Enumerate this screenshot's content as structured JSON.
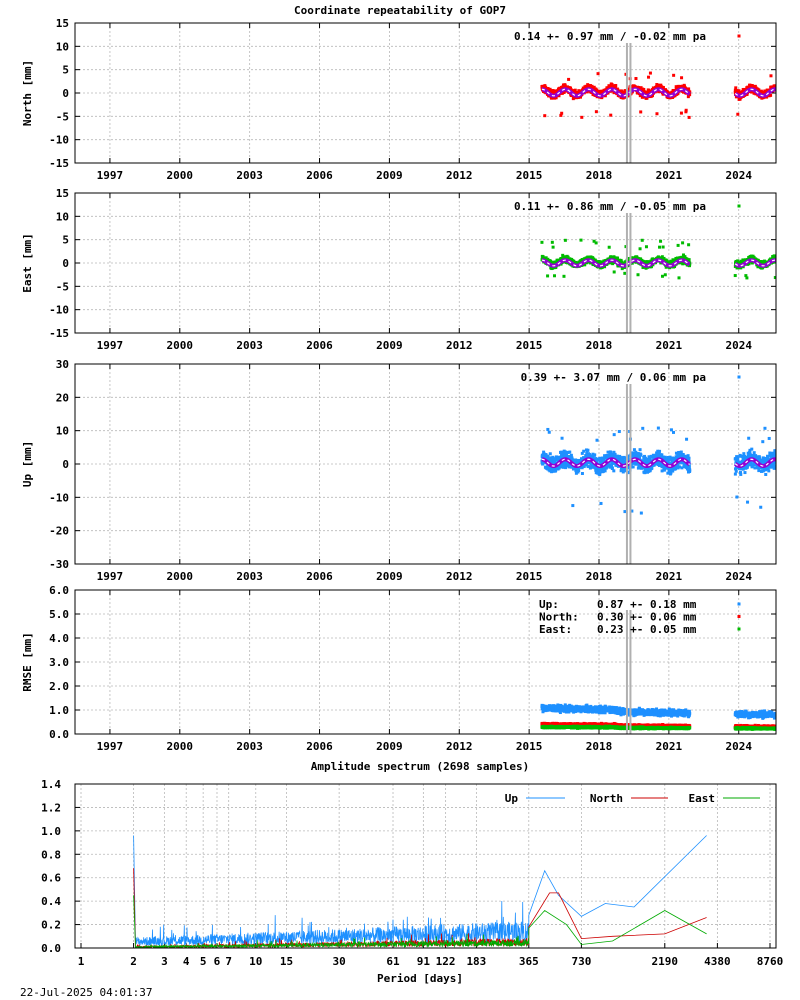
{
  "page": {
    "title": "Coordinate repeatability of GOP7",
    "footer_timestamp": "22-Jul-2025 04:01:37"
  },
  "colors": {
    "north": "#ff0000",
    "east": "#00bb00",
    "up": "#1e90ff",
    "model": "#9400d3",
    "model_core": "#ffffff",
    "vline": "#b0b0b0",
    "grid": "#b8b8b8"
  },
  "chart_data": [
    {
      "id": "north",
      "type": "scatter",
      "ylabel": "North [mm]",
      "ylim": [
        -15,
        15
      ],
      "yticks": [
        -15,
        -10,
        -5,
        0,
        5,
        10,
        15
      ],
      "xlim": [
        1995.5,
        2025.6
      ],
      "xticks": [
        1997,
        2000,
        2003,
        2006,
        2009,
        2012,
        2015,
        2018,
        2021,
        2024
      ],
      "xticklabels": [
        "1997",
        "2000",
        "2003",
        "2006",
        "2009",
        "2012",
        "2015",
        "2018",
        "2021",
        "2024"
      ],
      "annotation": "0.14 +- 0.97 mm / -0.02 mm pa",
      "grid": true,
      "series": [
        {
          "color": "#ff0000",
          "segments": [
            [
              2015.55,
              2021.9
            ],
            [
              2023.85,
              2025.6
            ]
          ],
          "spread": 1.0,
          "offset": 0.3,
          "outlier_min": -5.5,
          "outlier_max": 4.6,
          "model_amplitude": 0.7,
          "model_offset": 0.1
        }
      ],
      "vlines": [
        2019.2,
        2019.35
      ]
    },
    {
      "id": "east",
      "type": "scatter",
      "ylabel": "East [mm]",
      "ylim": [
        -15,
        15
      ],
      "yticks": [
        -15,
        -10,
        -5,
        0,
        5,
        10,
        15
      ],
      "xlim": [
        1995.5,
        2025.6
      ],
      "xticks": [
        1997,
        2000,
        2003,
        2006,
        2009,
        2012,
        2015,
        2018,
        2021,
        2024
      ],
      "xticklabels": [
        "1997",
        "2000",
        "2003",
        "2006",
        "2009",
        "2012",
        "2015",
        "2018",
        "2021",
        "2024"
      ],
      "annotation": "0.11 +- 0.86 mm / -0.05 mm pa",
      "grid": true,
      "series": [
        {
          "color": "#00bb00",
          "segments": [
            [
              2015.55,
              2021.9
            ],
            [
              2023.85,
              2025.6
            ]
          ],
          "spread": 0.9,
          "offset": 0.2,
          "outlier_min": -3.2,
          "outlier_max": 5.0,
          "model_amplitude": 0.6,
          "model_offset": 0.0
        }
      ],
      "vlines": [
        2019.2,
        2019.35
      ]
    },
    {
      "id": "up",
      "type": "scatter",
      "ylabel": "Up [mm]",
      "ylim": [
        -30,
        30
      ],
      "yticks": [
        -30,
        -20,
        -10,
        0,
        10,
        20,
        30
      ],
      "xlim": [
        1995.5,
        2025.6
      ],
      "xticks": [
        1997,
        2000,
        2003,
        2006,
        2009,
        2012,
        2015,
        2018,
        2021,
        2024
      ],
      "xticklabels": [
        "1997",
        "2000",
        "2003",
        "2006",
        "2009",
        "2012",
        "2015",
        "2018",
        "2021",
        "2024"
      ],
      "annotation": "0.39 +- 3.07 mm /  0.06 mm pa",
      "grid": true,
      "series": [
        {
          "color": "#1e90ff",
          "segments": [
            [
              2015.55,
              2021.9
            ],
            [
              2023.85,
              2025.6
            ]
          ],
          "spread": 3.2,
          "offset": 0.6,
          "outlier_min": -16.5,
          "outlier_max": 11.0,
          "model_amplitude": 1.0,
          "model_offset": 0.4
        }
      ],
      "vlines": [
        2019.2,
        2019.35
      ]
    },
    {
      "id": "rmse",
      "type": "scatter",
      "ylabel": "RMSE [mm]",
      "ylim": [
        0,
        6
      ],
      "yticks": [
        0,
        1,
        2,
        3,
        4,
        5,
        6
      ],
      "yticklabels": [
        "0.0",
        "1.0",
        "2.0",
        "3.0",
        "4.0",
        "5.0",
        "6.0"
      ],
      "xlim": [
        1995.5,
        2025.6
      ],
      "xticks": [
        1997,
        2000,
        2003,
        2006,
        2009,
        2012,
        2015,
        2018,
        2021,
        2024
      ],
      "xticklabels": [
        "1997",
        "2000",
        "2003",
        "2006",
        "2009",
        "2012",
        "2015",
        "2018",
        "2021",
        "2024"
      ],
      "grid": true,
      "legend": [
        {
          "name": "Up:",
          "value": "0.87 +- 0.18 mm",
          "color": "#1e90ff"
        },
        {
          "name": "North:",
          "value": "0.30 +- 0.06 mm",
          "color": "#ff0000"
        },
        {
          "name": "East:",
          "value": "0.23 +- 0.05 mm",
          "color": "#00bb00"
        }
      ],
      "series": [
        {
          "name": "Up",
          "color": "#1e90ff",
          "segments": [
            [
              2015.55,
              2021.9
            ],
            [
              2023.85,
              2025.6
            ]
          ],
          "level_start": 1.0,
          "level_end": 0.8,
          "jitter": 0.15
        },
        {
          "name": "North",
          "color": "#ff0000",
          "segments": [
            [
              2015.55,
              2021.9
            ],
            [
              2023.85,
              2025.6
            ]
          ],
          "level_start": 0.38,
          "level_end": 0.3,
          "jitter": 0.05
        },
        {
          "name": "East",
          "color": "#00bb00",
          "segments": [
            [
              2015.55,
              2021.9
            ],
            [
              2023.85,
              2025.6
            ]
          ],
          "level_start": 0.27,
          "level_end": 0.23,
          "jitter": 0.04
        }
      ],
      "vlines": [
        2019.2,
        2019.35
      ]
    },
    {
      "id": "spectrum",
      "type": "line",
      "title": "Amplitude spectrum (2698 samples)",
      "xlabel": "Period [days]",
      "xscale": "log",
      "xlim": [
        1,
        8760
      ],
      "ylim": [
        0,
        1.4
      ],
      "yticks": [
        0,
        0.2,
        0.4,
        0.6,
        0.8,
        1.0,
        1.2,
        1.4
      ],
      "yticklabels": [
        "0.0",
        "0.2",
        "0.4",
        "0.6",
        "0.8",
        "1.0",
        "1.2",
        "1.4"
      ],
      "xticks": [
        1,
        2,
        3,
        4,
        5,
        6,
        7,
        10,
        15,
        30,
        61,
        91,
        122,
        183,
        365,
        730,
        2190,
        4380,
        8760
      ],
      "xticklabels": [
        "1",
        "2",
        "3",
        "4",
        "5",
        "6",
        "7",
        "10",
        "15",
        "30",
        "61",
        "91",
        "122",
        "183",
        "365",
        "730",
        "2190",
        "4380",
        "8760"
      ],
      "grid": true,
      "legend_position": "top-right",
      "series": [
        {
          "name": "Up",
          "color": "#1e90ff",
          "low_band": [
            0.06,
            0.16
          ],
          "key_points": [
            [
              2.0,
              0.96
            ],
            [
              2.05,
              0.3
            ],
            [
              365,
              0.28
            ],
            [
              450,
              0.66
            ],
            [
              540,
              0.45
            ],
            [
              730,
              0.27
            ],
            [
              1000,
              0.38
            ],
            [
              1460,
              0.35
            ],
            [
              3800,
              0.96
            ]
          ]
        },
        {
          "name": "North",
          "color": "#cc0000",
          "low_band": [
            0.01,
            0.06
          ],
          "key_points": [
            [
              2.0,
              0.68
            ],
            [
              2.05,
              0.2
            ],
            [
              365,
              0.18
            ],
            [
              480,
              0.47
            ],
            [
              540,
              0.47
            ],
            [
              730,
              0.08
            ],
            [
              1100,
              0.1
            ],
            [
              2190,
              0.12
            ],
            [
              3800,
              0.26
            ]
          ]
        },
        {
          "name": "East",
          "color": "#00aa00",
          "low_band": [
            0.01,
            0.05
          ],
          "key_points": [
            [
              2.0,
              0.45
            ],
            [
              2.05,
              0.12
            ],
            [
              365,
              0.17
            ],
            [
              450,
              0.32
            ],
            [
              600,
              0.2
            ],
            [
              730,
              0.03
            ],
            [
              1100,
              0.06
            ],
            [
              2190,
              0.32
            ],
            [
              3800,
              0.12
            ]
          ]
        }
      ]
    }
  ]
}
